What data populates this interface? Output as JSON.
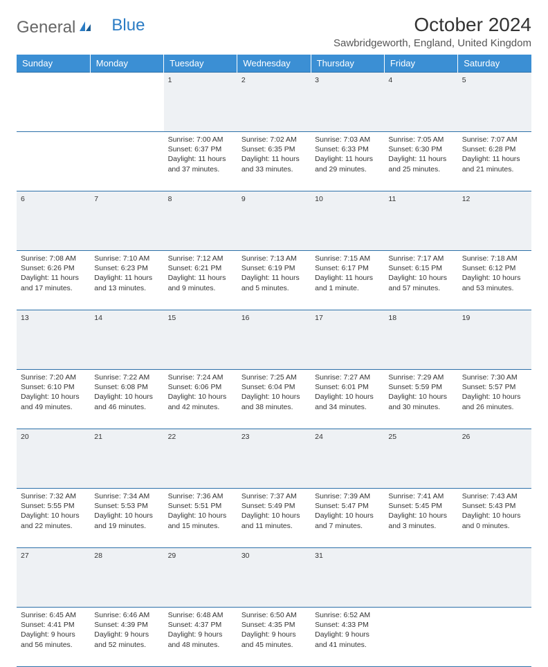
{
  "logo": {
    "text1": "General",
    "text2": "Blue"
  },
  "title": "October 2024",
  "location": "Sawbridgeworth, England, United Kingdom",
  "colors": {
    "header_bg": "#3b8fd4",
    "header_text": "#ffffff",
    "daynum_bg": "#eef1f4",
    "border": "#2b6fa8",
    "logo_blue": "#2b7cc4"
  },
  "weekdays": [
    "Sunday",
    "Monday",
    "Tuesday",
    "Wednesday",
    "Thursday",
    "Friday",
    "Saturday"
  ],
  "weeks": [
    {
      "days": [
        null,
        null,
        {
          "n": "1",
          "sr": "Sunrise: 7:00 AM",
          "ss": "Sunset: 6:37 PM",
          "dl": "Daylight: 11 hours and 37 minutes."
        },
        {
          "n": "2",
          "sr": "Sunrise: 7:02 AM",
          "ss": "Sunset: 6:35 PM",
          "dl": "Daylight: 11 hours and 33 minutes."
        },
        {
          "n": "3",
          "sr": "Sunrise: 7:03 AM",
          "ss": "Sunset: 6:33 PM",
          "dl": "Daylight: 11 hours and 29 minutes."
        },
        {
          "n": "4",
          "sr": "Sunrise: 7:05 AM",
          "ss": "Sunset: 6:30 PM",
          "dl": "Daylight: 11 hours and 25 minutes."
        },
        {
          "n": "5",
          "sr": "Sunrise: 7:07 AM",
          "ss": "Sunset: 6:28 PM",
          "dl": "Daylight: 11 hours and 21 minutes."
        }
      ]
    },
    {
      "days": [
        {
          "n": "6",
          "sr": "Sunrise: 7:08 AM",
          "ss": "Sunset: 6:26 PM",
          "dl": "Daylight: 11 hours and 17 minutes."
        },
        {
          "n": "7",
          "sr": "Sunrise: 7:10 AM",
          "ss": "Sunset: 6:23 PM",
          "dl": "Daylight: 11 hours and 13 minutes."
        },
        {
          "n": "8",
          "sr": "Sunrise: 7:12 AM",
          "ss": "Sunset: 6:21 PM",
          "dl": "Daylight: 11 hours and 9 minutes."
        },
        {
          "n": "9",
          "sr": "Sunrise: 7:13 AM",
          "ss": "Sunset: 6:19 PM",
          "dl": "Daylight: 11 hours and 5 minutes."
        },
        {
          "n": "10",
          "sr": "Sunrise: 7:15 AM",
          "ss": "Sunset: 6:17 PM",
          "dl": "Daylight: 11 hours and 1 minute."
        },
        {
          "n": "11",
          "sr": "Sunrise: 7:17 AM",
          "ss": "Sunset: 6:15 PM",
          "dl": "Daylight: 10 hours and 57 minutes."
        },
        {
          "n": "12",
          "sr": "Sunrise: 7:18 AM",
          "ss": "Sunset: 6:12 PM",
          "dl": "Daylight: 10 hours and 53 minutes."
        }
      ]
    },
    {
      "days": [
        {
          "n": "13",
          "sr": "Sunrise: 7:20 AM",
          "ss": "Sunset: 6:10 PM",
          "dl": "Daylight: 10 hours and 49 minutes."
        },
        {
          "n": "14",
          "sr": "Sunrise: 7:22 AM",
          "ss": "Sunset: 6:08 PM",
          "dl": "Daylight: 10 hours and 46 minutes."
        },
        {
          "n": "15",
          "sr": "Sunrise: 7:24 AM",
          "ss": "Sunset: 6:06 PM",
          "dl": "Daylight: 10 hours and 42 minutes."
        },
        {
          "n": "16",
          "sr": "Sunrise: 7:25 AM",
          "ss": "Sunset: 6:04 PM",
          "dl": "Daylight: 10 hours and 38 minutes."
        },
        {
          "n": "17",
          "sr": "Sunrise: 7:27 AM",
          "ss": "Sunset: 6:01 PM",
          "dl": "Daylight: 10 hours and 34 minutes."
        },
        {
          "n": "18",
          "sr": "Sunrise: 7:29 AM",
          "ss": "Sunset: 5:59 PM",
          "dl": "Daylight: 10 hours and 30 minutes."
        },
        {
          "n": "19",
          "sr": "Sunrise: 7:30 AM",
          "ss": "Sunset: 5:57 PM",
          "dl": "Daylight: 10 hours and 26 minutes."
        }
      ]
    },
    {
      "days": [
        {
          "n": "20",
          "sr": "Sunrise: 7:32 AM",
          "ss": "Sunset: 5:55 PM",
          "dl": "Daylight: 10 hours and 22 minutes."
        },
        {
          "n": "21",
          "sr": "Sunrise: 7:34 AM",
          "ss": "Sunset: 5:53 PM",
          "dl": "Daylight: 10 hours and 19 minutes."
        },
        {
          "n": "22",
          "sr": "Sunrise: 7:36 AM",
          "ss": "Sunset: 5:51 PM",
          "dl": "Daylight: 10 hours and 15 minutes."
        },
        {
          "n": "23",
          "sr": "Sunrise: 7:37 AM",
          "ss": "Sunset: 5:49 PM",
          "dl": "Daylight: 10 hours and 11 minutes."
        },
        {
          "n": "24",
          "sr": "Sunrise: 7:39 AM",
          "ss": "Sunset: 5:47 PM",
          "dl": "Daylight: 10 hours and 7 minutes."
        },
        {
          "n": "25",
          "sr": "Sunrise: 7:41 AM",
          "ss": "Sunset: 5:45 PM",
          "dl": "Daylight: 10 hours and 3 minutes."
        },
        {
          "n": "26",
          "sr": "Sunrise: 7:43 AM",
          "ss": "Sunset: 5:43 PM",
          "dl": "Daylight: 10 hours and 0 minutes."
        }
      ]
    },
    {
      "days": [
        {
          "n": "27",
          "sr": "Sunrise: 6:45 AM",
          "ss": "Sunset: 4:41 PM",
          "dl": "Daylight: 9 hours and 56 minutes."
        },
        {
          "n": "28",
          "sr": "Sunrise: 6:46 AM",
          "ss": "Sunset: 4:39 PM",
          "dl": "Daylight: 9 hours and 52 minutes."
        },
        {
          "n": "29",
          "sr": "Sunrise: 6:48 AM",
          "ss": "Sunset: 4:37 PM",
          "dl": "Daylight: 9 hours and 48 minutes."
        },
        {
          "n": "30",
          "sr": "Sunrise: 6:50 AM",
          "ss": "Sunset: 4:35 PM",
          "dl": "Daylight: 9 hours and 45 minutes."
        },
        {
          "n": "31",
          "sr": "Sunrise: 6:52 AM",
          "ss": "Sunset: 4:33 PM",
          "dl": "Daylight: 9 hours and 41 minutes."
        },
        null,
        null
      ]
    }
  ]
}
